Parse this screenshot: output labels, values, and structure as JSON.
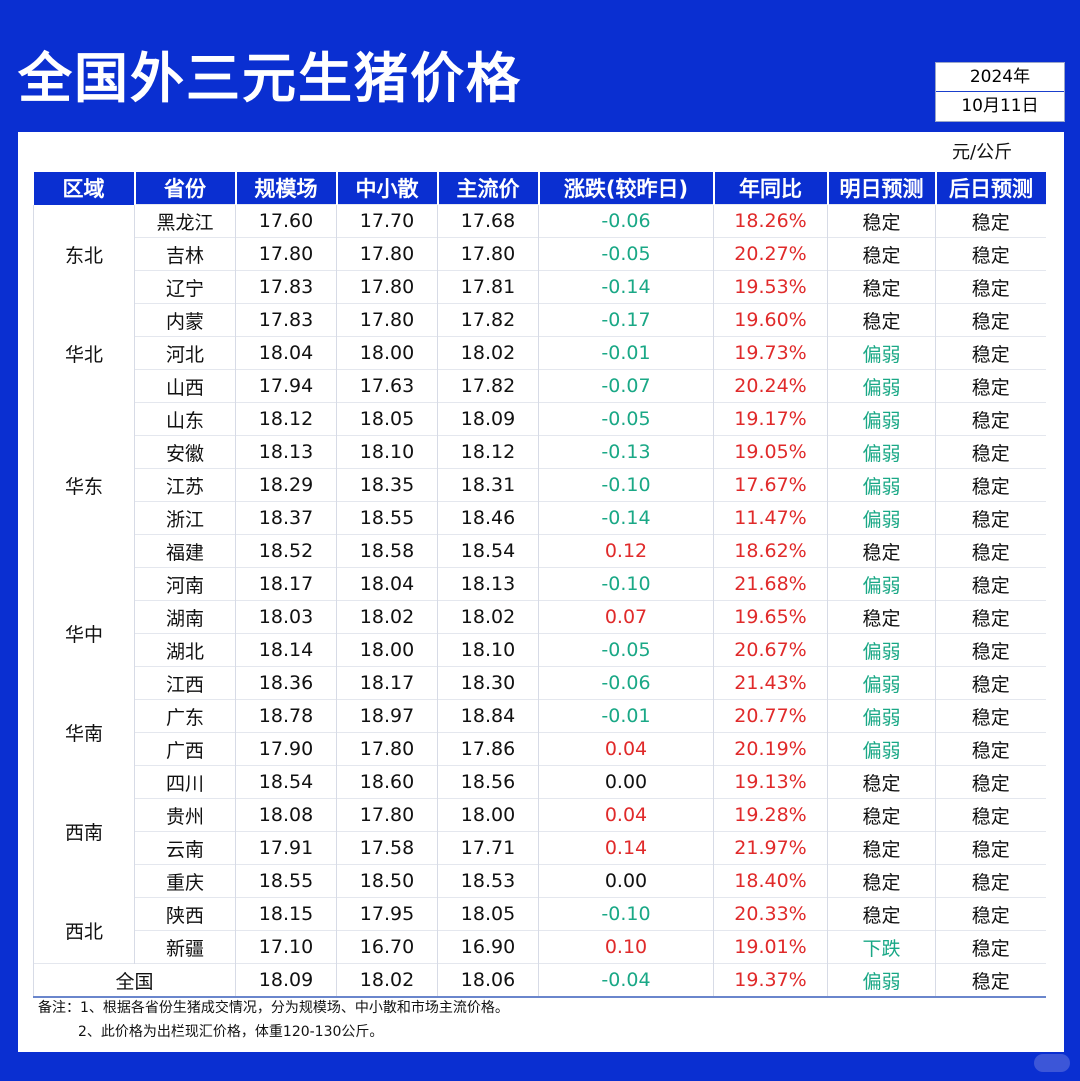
{
  "header": {
    "title": "全国外三元生猪价格",
    "year": "2024年",
    "date": "10月11日"
  },
  "unit": "元/公斤",
  "table": {
    "columns": [
      "区域",
      "省份",
      "规模场",
      "中小散",
      "主流价",
      "涨跌(较昨日)",
      "年同比",
      "明日预测",
      "后日预测"
    ],
    "regions": [
      {
        "name": "东北",
        "rows": 3
      },
      {
        "name": "华北",
        "rows": 3
      },
      {
        "name": "华东",
        "rows": 5
      },
      {
        "name": "华中",
        "rows": 4
      },
      {
        "name": "华南",
        "rows": 2
      },
      {
        "name": "西南",
        "rows": 4
      },
      {
        "name": "西北",
        "rows": 2
      }
    ],
    "rows": [
      [
        "黑龙江",
        "17.60",
        "17.70",
        "17.68",
        "-0.06",
        "18.26%",
        "稳定",
        "稳定"
      ],
      [
        "吉林",
        "17.80",
        "17.80",
        "17.80",
        "-0.05",
        "20.27%",
        "稳定",
        "稳定"
      ],
      [
        "辽宁",
        "17.83",
        "17.80",
        "17.81",
        "-0.14",
        "19.53%",
        "稳定",
        "稳定"
      ],
      [
        "内蒙",
        "17.83",
        "17.80",
        "17.82",
        "-0.17",
        "19.60%",
        "稳定",
        "稳定"
      ],
      [
        "河北",
        "18.04",
        "18.00",
        "18.02",
        "-0.01",
        "19.73%",
        "偏弱",
        "稳定"
      ],
      [
        "山西",
        "17.94",
        "17.63",
        "17.82",
        "-0.07",
        "20.24%",
        "偏弱",
        "稳定"
      ],
      [
        "山东",
        "18.12",
        "18.05",
        "18.09",
        "-0.05",
        "19.17%",
        "偏弱",
        "稳定"
      ],
      [
        "安徽",
        "18.13",
        "18.10",
        "18.12",
        "-0.13",
        "19.05%",
        "偏弱",
        "稳定"
      ],
      [
        "江苏",
        "18.29",
        "18.35",
        "18.31",
        "-0.10",
        "17.67%",
        "偏弱",
        "稳定"
      ],
      [
        "浙江",
        "18.37",
        "18.55",
        "18.46",
        "-0.14",
        "11.47%",
        "偏弱",
        "稳定"
      ],
      [
        "福建",
        "18.52",
        "18.58",
        "18.54",
        "0.12",
        "18.62%",
        "稳定",
        "稳定"
      ],
      [
        "河南",
        "18.17",
        "18.04",
        "18.13",
        "-0.10",
        "21.68%",
        "偏弱",
        "稳定"
      ],
      [
        "湖南",
        "18.03",
        "18.02",
        "18.02",
        "0.07",
        "19.65%",
        "稳定",
        "稳定"
      ],
      [
        "湖北",
        "18.14",
        "18.00",
        "18.10",
        "-0.05",
        "20.67%",
        "偏弱",
        "稳定"
      ],
      [
        "江西",
        "18.36",
        "18.17",
        "18.30",
        "-0.06",
        "21.43%",
        "偏弱",
        "稳定"
      ],
      [
        "广东",
        "18.78",
        "18.97",
        "18.84",
        "-0.01",
        "20.77%",
        "偏弱",
        "稳定"
      ],
      [
        "广西",
        "17.90",
        "17.80",
        "17.86",
        "0.04",
        "20.19%",
        "偏弱",
        "稳定"
      ],
      [
        "四川",
        "18.54",
        "18.60",
        "18.56",
        "0.00",
        "19.13%",
        "稳定",
        "稳定"
      ],
      [
        "贵州",
        "18.08",
        "17.80",
        "18.00",
        "0.04",
        "19.28%",
        "稳定",
        "稳定"
      ],
      [
        "云南",
        "17.91",
        "17.58",
        "17.71",
        "0.14",
        "21.97%",
        "稳定",
        "稳定"
      ],
      [
        "重庆",
        "18.55",
        "18.50",
        "18.53",
        "0.00",
        "18.40%",
        "稳定",
        "稳定"
      ],
      [
        "陕西",
        "18.15",
        "17.95",
        "18.05",
        "-0.10",
        "20.33%",
        "稳定",
        "稳定"
      ],
      [
        "新疆",
        "17.10",
        "16.70",
        "16.90",
        "0.10",
        "19.01%",
        "下跌",
        "稳定"
      ]
    ],
    "national": [
      "全国",
      "18.09",
      "18.02",
      "18.06",
      "-0.04",
      "19.37%",
      "偏弱",
      "稳定"
    ]
  },
  "notes": {
    "line1": "备注：1、根据各省份生猪成交情况，分为规模场、中小散和市场主流价格。",
    "line2": "2、此价格为出栏现汇价格，体重120-130公斤。"
  },
  "colors": {
    "brand_blue": "#0a2fd1",
    "up_red": "#e02a2a",
    "down_green": "#1aa886"
  }
}
